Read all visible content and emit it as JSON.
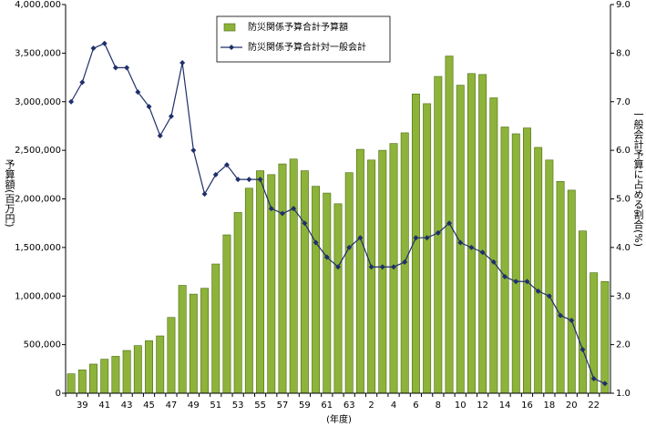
{
  "chart_data": {
    "type": "bar-line",
    "y_label": "予算額(百万円)",
    "y2_label": "一般会計予算に占める割合(%)",
    "x_label": "(年度)",
    "categories": [
      null,
      "39",
      null,
      "41",
      null,
      "43",
      null,
      "45",
      null,
      "47",
      null,
      "49",
      null,
      "51",
      null,
      "53",
      null,
      "55",
      null,
      "57",
      null,
      "59",
      null,
      "61",
      null,
      "63",
      null,
      "2",
      null,
      "4",
      null,
      "6",
      null,
      "8",
      null,
      "10",
      null,
      "12",
      null,
      "14",
      null,
      "16",
      null,
      "18",
      null,
      "20",
      null,
      "22",
      null
    ],
    "series": [
      {
        "name": "防災関係予算合計予算額",
        "type": "bar",
        "color": "#8db33a",
        "values": [
          200000,
          240000,
          300000,
          350000,
          380000,
          440000,
          490000,
          540000,
          590000,
          780000,
          1110000,
          1020000,
          1080000,
          1330000,
          1630000,
          1860000,
          2110000,
          2290000,
          2250000,
          2360000,
          2410000,
          2290000,
          2130000,
          2060000,
          1950000,
          2270000,
          2510000,
          2400000,
          2500000,
          2570000,
          2680000,
          3080000,
          2980000,
          3260000,
          3470000,
          3170000,
          3290000,
          3280000,
          3040000,
          2740000,
          2670000,
          2730000,
          2530000,
          2400000,
          2180000,
          2090000,
          1670000,
          1240000,
          1150000
        ]
      },
      {
        "name": "防災関係予算合計対一般会計",
        "type": "line",
        "axis": "y2",
        "color": "#1f2f6b",
        "values": [
          7.0,
          7.4,
          8.1,
          8.2,
          7.7,
          7.7,
          7.2,
          6.9,
          6.3,
          6.7,
          7.8,
          6.0,
          5.1,
          5.5,
          5.7,
          5.4,
          5.4,
          5.4,
          4.8,
          4.7,
          4.8,
          4.5,
          4.1,
          3.8,
          3.6,
          4.0,
          4.2,
          3.6,
          3.6,
          3.6,
          3.7,
          4.2,
          4.2,
          4.3,
          4.5,
          4.1,
          4.0,
          3.9,
          3.7,
          3.4,
          3.3,
          3.3,
          3.1,
          3.0,
          2.6,
          2.5,
          1.9,
          1.3,
          1.2
        ]
      }
    ],
    "ylim": [
      0,
      4000000
    ],
    "yticks": [
      0,
      {
        "value": 500000,
        "label": "500,000"
      },
      {
        "value": 1000000,
        "label": "1,000,000"
      },
      {
        "value": 1500000,
        "label": "1,500,000"
      },
      {
        "value": 2000000,
        "label": "2,000,000"
      },
      {
        "value": 2500000,
        "label": "2,500,000"
      },
      {
        "value": 3000000,
        "label": "3,000,000"
      },
      {
        "value": 3500000,
        "label": "3,500,000"
      },
      {
        "value": 4000000,
        "label": "4,000,000"
      }
    ],
    "y2lim": [
      1.0,
      9.0
    ],
    "y2ticks": [
      {
        "value": 1.0,
        "label": "1.0"
      },
      {
        "value": 2.0,
        "label": "2.0"
      },
      {
        "value": 3.0,
        "label": "3.0"
      },
      {
        "value": 4.0,
        "label": "4.0"
      },
      {
        "value": 5.0,
        "label": "5.0"
      },
      {
        "value": 6.0,
        "label": "6.0"
      },
      {
        "value": 7.0,
        "label": "7.0"
      },
      {
        "value": 8.0,
        "label": "8.0"
      },
      {
        "value": 9.0,
        "label": "9.0"
      }
    ],
    "grid": false
  }
}
